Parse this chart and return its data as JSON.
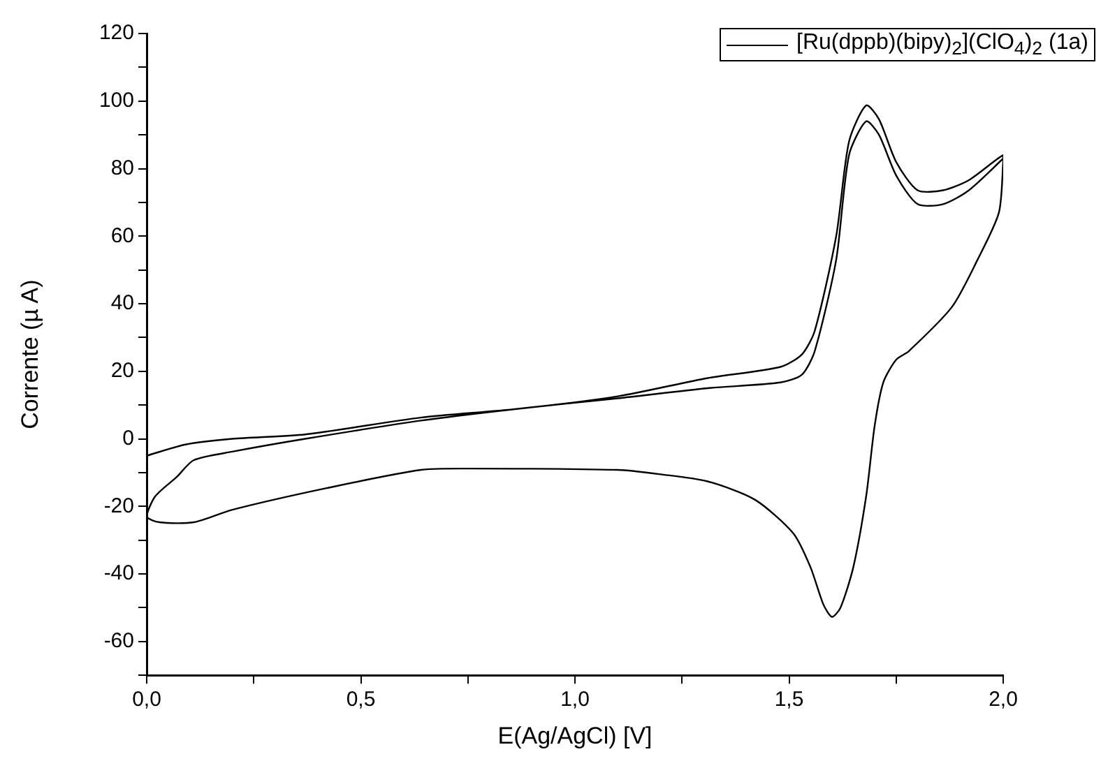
{
  "chart_data": {
    "type": "line",
    "xlabel": "E(Ag/AgCl) [V]",
    "ylabel": "Corrente (µ A)",
    "legend": "top right",
    "marker": "none",
    "xlim": [
      0,
      2
    ],
    "ylim": [
      -70,
      120
    ],
    "xticks": [
      {
        "value": 0,
        "label": "0,0"
      },
      {
        "value": 0.25,
        "label": null
      },
      {
        "value": 0.5,
        "label": "0,5"
      },
      {
        "value": 0.75,
        "label": null
      },
      {
        "value": 1,
        "label": "1,0"
      },
      {
        "value": 1.25,
        "label": null
      },
      {
        "value": 1.5,
        "label": "1,5"
      },
      {
        "value": 1.75,
        "label": null
      },
      {
        "value": 2,
        "label": "2,0"
      }
    ],
    "yticks": [
      {
        "value": -70,
        "label": null
      },
      -60,
      {
        "value": -50,
        "label": null
      },
      -40,
      {
        "value": -30,
        "label": null
      },
      -20,
      {
        "value": -10,
        "label": null
      },
      0,
      {
        "value": 10,
        "label": null
      },
      20,
      {
        "value": 30,
        "label": null
      },
      40,
      {
        "value": 50,
        "label": null
      },
      60,
      {
        "value": 70,
        "label": null
      },
      80,
      {
        "value": 90,
        "label": null
      },
      100,
      {
        "value": 110,
        "label": null
      },
      120
    ],
    "series": [
      {
        "name": "[Ru(dppb)(bipy)$_{2}$](ClO$_{4}$)$_{2}$ (1a)",
        "color": "#000000",
        "x": [
          0,
          0.09,
          0.2,
          0.37,
          0.64,
          0.86,
          1.1,
          1.31,
          1.48,
          1.53,
          1.56,
          1.61,
          1.64,
          1.68,
          1.71,
          1.75,
          1.8,
          1.86,
          1.92,
          2.0,
          2.0,
          1.99,
          1.94,
          1.88,
          1.78,
          1.75,
          1.72,
          1.7,
          1.68,
          1.65,
          1.62,
          1.6,
          1.58,
          1.55,
          1.51,
          1.42,
          1.31,
          1.2,
          1.1,
          0.75,
          0.64,
          0.42,
          0.2,
          0.11,
          0.03,
          0,
          0.02,
          0.07,
          0.11,
          0.2,
          0.37,
          0.64,
          0.86,
          1.1,
          1.31,
          1.48,
          1.53,
          1.56,
          1.61,
          1.64,
          1.68,
          1.71,
          1.75,
          1.8,
          1.86,
          1.92,
          2.0
        ],
        "values": [
          -5,
          -1.7,
          0,
          1.3,
          6.3,
          8.8,
          12.6,
          18,
          21.3,
          25,
          32,
          60,
          88,
          98.7,
          94.6,
          82,
          73.6,
          73.6,
          76.6,
          84,
          82,
          67,
          53,
          39,
          26,
          23.4,
          16.7,
          4,
          -17,
          -38,
          -50,
          -52.7,
          -49,
          -38,
          -28,
          -18,
          -12.6,
          -10.5,
          -9.2,
          -8.8,
          -9.2,
          -14.6,
          -21,
          -24.7,
          -24.7,
          -23,
          -17,
          -11.3,
          -6.3,
          -3.8,
          0,
          5.4,
          8.8,
          12,
          15,
          16.7,
          19,
          26,
          53,
          84,
          94,
          90,
          78,
          69.5,
          69.5,
          73.6,
          83
        ]
      }
    ]
  }
}
